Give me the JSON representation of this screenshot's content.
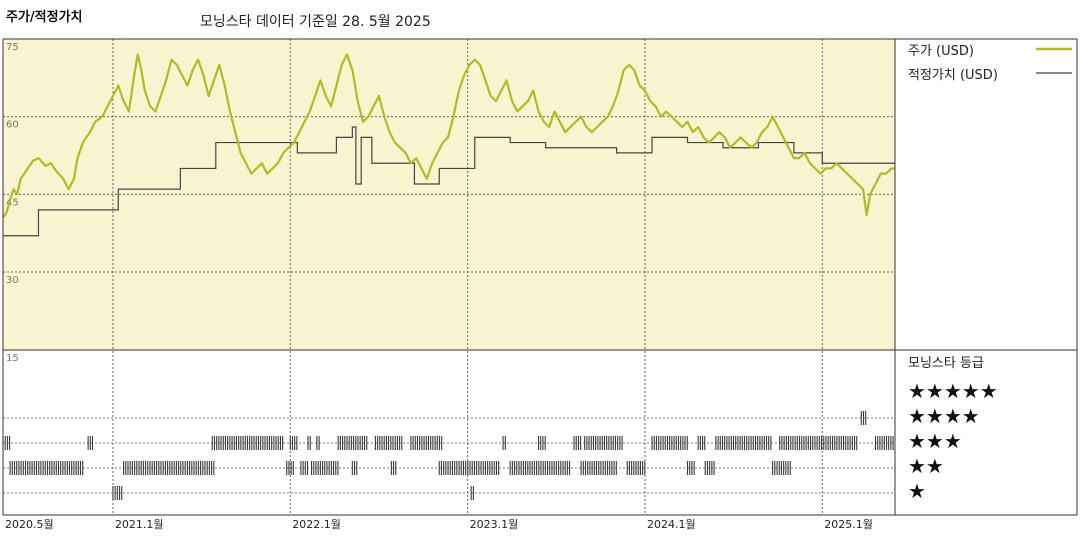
{
  "header": {
    "title": "주가/적정가치",
    "subtitle": "모닝스타 데이터 기준일 28. 5월 2025"
  },
  "legend": {
    "price_label": "주가 (USD)",
    "fair_label": "적정가치 (USD)",
    "rating_title": "모닝스타 등급",
    "stars": [
      "★★★★★",
      "★★★★",
      "★★★",
      "★★",
      "★"
    ]
  },
  "colors": {
    "price": "#b5b829",
    "fair": "#444444",
    "plot_bg": "#f8f4cf",
    "rating_bar": "#3a3a3a"
  },
  "chart_data": {
    "type": "line",
    "title": "주가/적정가치",
    "x_unit": "year",
    "xlim": [
      2020.38,
      2025.41
    ],
    "ylim": [
      15,
      75
    ],
    "yticks": [
      {
        "label": "75",
        "value": 75
      },
      {
        "label": "60",
        "value": 60
      },
      {
        "label": "45",
        "value": 45
      },
      {
        "label": "30",
        "value": 30
      },
      {
        "label": "15",
        "value": 15
      }
    ],
    "xticks": [
      {
        "label": "2020.5월",
        "value": 2020.38
      },
      {
        "label": "2021.1월",
        "value": 2021.0
      },
      {
        "label": "2022.1월",
        "value": 2022.0
      },
      {
        "label": "2023.1월",
        "value": 2023.0
      },
      {
        "label": "2024.1월",
        "value": 2024.0
      },
      {
        "label": "2025.1월",
        "value": 2025.0
      }
    ],
    "series": [
      {
        "name": "주가 (USD)",
        "points": [
          [
            2020.38,
            40.5
          ],
          [
            2020.4,
            41.5
          ],
          [
            2020.42,
            44
          ],
          [
            2020.44,
            46
          ],
          [
            2020.46,
            45
          ],
          [
            2020.48,
            48
          ],
          [
            2020.5,
            49
          ],
          [
            2020.52,
            50
          ],
          [
            2020.55,
            51.5
          ],
          [
            2020.58,
            52
          ],
          [
            2020.62,
            50.5
          ],
          [
            2020.65,
            51
          ],
          [
            2020.68,
            49.5
          ],
          [
            2020.72,
            48
          ],
          [
            2020.75,
            46
          ],
          [
            2020.78,
            48
          ],
          [
            2020.8,
            52
          ],
          [
            2020.83,
            55
          ],
          [
            2020.87,
            57
          ],
          [
            2020.9,
            59
          ],
          [
            2020.94,
            60
          ],
          [
            2020.97,
            62
          ],
          [
            2021.0,
            64
          ],
          [
            2021.03,
            66
          ],
          [
            2021.06,
            63
          ],
          [
            2021.09,
            61
          ],
          [
            2021.12,
            68
          ],
          [
            2021.14,
            72
          ],
          [
            2021.16,
            69
          ],
          [
            2021.18,
            65
          ],
          [
            2021.21,
            62
          ],
          [
            2021.24,
            61
          ],
          [
            2021.27,
            64
          ],
          [
            2021.3,
            67
          ],
          [
            2021.33,
            71
          ],
          [
            2021.36,
            70
          ],
          [
            2021.39,
            68
          ],
          [
            2021.42,
            66
          ],
          [
            2021.45,
            69
          ],
          [
            2021.48,
            71
          ],
          [
            2021.51,
            68
          ],
          [
            2021.54,
            64
          ],
          [
            2021.57,
            67
          ],
          [
            2021.6,
            70
          ],
          [
            2021.63,
            66
          ],
          [
            2021.66,
            61
          ],
          [
            2021.69,
            57
          ],
          [
            2021.72,
            53
          ],
          [
            2021.75,
            51
          ],
          [
            2021.78,
            49
          ],
          [
            2021.81,
            50
          ],
          [
            2021.84,
            51
          ],
          [
            2021.87,
            49
          ],
          [
            2021.9,
            50
          ],
          [
            2021.93,
            51
          ],
          [
            2021.96,
            53
          ],
          [
            2021.99,
            54
          ],
          [
            2022.02,
            55
          ],
          [
            2022.05,
            57
          ],
          [
            2022.08,
            59
          ],
          [
            2022.11,
            61
          ],
          [
            2022.14,
            64
          ],
          [
            2022.17,
            67
          ],
          [
            2022.2,
            64
          ],
          [
            2022.23,
            62
          ],
          [
            2022.26,
            66
          ],
          [
            2022.29,
            70
          ],
          [
            2022.32,
            72
          ],
          [
            2022.35,
            69
          ],
          [
            2022.38,
            63
          ],
          [
            2022.41,
            59
          ],
          [
            2022.44,
            60
          ],
          [
            2022.47,
            62
          ],
          [
            2022.5,
            64
          ],
          [
            2022.53,
            60
          ],
          [
            2022.56,
            57
          ],
          [
            2022.59,
            55
          ],
          [
            2022.62,
            54
          ],
          [
            2022.65,
            53
          ],
          [
            2022.68,
            51
          ],
          [
            2022.71,
            52
          ],
          [
            2022.74,
            50
          ],
          [
            2022.77,
            48
          ],
          [
            2022.8,
            51
          ],
          [
            2022.83,
            53
          ],
          [
            2022.86,
            55
          ],
          [
            2022.89,
            56
          ],
          [
            2022.92,
            60
          ],
          [
            2022.95,
            65
          ],
          [
            2022.98,
            68
          ],
          [
            2023.01,
            70
          ],
          [
            2023.04,
            71
          ],
          [
            2023.07,
            70
          ],
          [
            2023.1,
            67
          ],
          [
            2023.13,
            64
          ],
          [
            2023.16,
            63
          ],
          [
            2023.19,
            65
          ],
          [
            2023.22,
            67
          ],
          [
            2023.25,
            63
          ],
          [
            2023.28,
            61
          ],
          [
            2023.31,
            62
          ],
          [
            2023.34,
            63
          ],
          [
            2023.37,
            65
          ],
          [
            2023.4,
            61
          ],
          [
            2023.43,
            59
          ],
          [
            2023.46,
            58
          ],
          [
            2023.49,
            61
          ],
          [
            2023.52,
            59
          ],
          [
            2023.55,
            57
          ],
          [
            2023.58,
            58
          ],
          [
            2023.61,
            59
          ],
          [
            2023.64,
            60
          ],
          [
            2023.67,
            58
          ],
          [
            2023.7,
            57
          ],
          [
            2023.73,
            58
          ],
          [
            2023.76,
            59
          ],
          [
            2023.79,
            60
          ],
          [
            2023.82,
            62
          ],
          [
            2023.85,
            65
          ],
          [
            2023.88,
            69
          ],
          [
            2023.91,
            70
          ],
          [
            2023.94,
            69
          ],
          [
            2023.97,
            66
          ],
          [
            2024.0,
            65
          ],
          [
            2024.03,
            63
          ],
          [
            2024.06,
            62
          ],
          [
            2024.09,
            60
          ],
          [
            2024.12,
            61
          ],
          [
            2024.15,
            60
          ],
          [
            2024.18,
            59
          ],
          [
            2024.21,
            58
          ],
          [
            2024.24,
            59
          ],
          [
            2024.27,
            57
          ],
          [
            2024.3,
            58
          ],
          [
            2024.33,
            56
          ],
          [
            2024.36,
            55
          ],
          [
            2024.39,
            56
          ],
          [
            2024.42,
            57
          ],
          [
            2024.45,
            56
          ],
          [
            2024.48,
            54
          ],
          [
            2024.51,
            55
          ],
          [
            2024.54,
            56
          ],
          [
            2024.57,
            55
          ],
          [
            2024.6,
            54
          ],
          [
            2024.63,
            55
          ],
          [
            2024.66,
            57
          ],
          [
            2024.69,
            58
          ],
          [
            2024.72,
            60
          ],
          [
            2024.75,
            58
          ],
          [
            2024.78,
            56
          ],
          [
            2024.81,
            54
          ],
          [
            2024.84,
            52
          ],
          [
            2024.87,
            52
          ],
          [
            2024.9,
            53
          ],
          [
            2024.93,
            51
          ],
          [
            2024.96,
            50
          ],
          [
            2024.99,
            49
          ],
          [
            2025.02,
            50
          ],
          [
            2025.05,
            50
          ],
          [
            2025.08,
            51
          ],
          [
            2025.11,
            50
          ],
          [
            2025.14,
            49
          ],
          [
            2025.17,
            48
          ],
          [
            2025.2,
            47
          ],
          [
            2025.23,
            46
          ],
          [
            2025.25,
            41
          ],
          [
            2025.27,
            45
          ],
          [
            2025.3,
            47
          ],
          [
            2025.33,
            49
          ],
          [
            2025.36,
            49
          ],
          [
            2025.39,
            50
          ],
          [
            2025.41,
            50
          ]
        ]
      },
      {
        "name": "적정가치 (USD)",
        "steps": [
          [
            2020.38,
            37
          ],
          [
            2020.58,
            42
          ],
          [
            2021.03,
            46
          ],
          [
            2021.38,
            50
          ],
          [
            2021.58,
            55
          ],
          [
            2022.04,
            53
          ],
          [
            2022.26,
            56
          ],
          [
            2022.35,
            58
          ],
          [
            2022.37,
            47
          ],
          [
            2022.4,
            56
          ],
          [
            2022.46,
            51
          ],
          [
            2022.7,
            47
          ],
          [
            2022.84,
            50
          ],
          [
            2023.04,
            56
          ],
          [
            2023.24,
            55
          ],
          [
            2023.44,
            54
          ],
          [
            2023.64,
            54
          ],
          [
            2023.84,
            53
          ],
          [
            2024.04,
            56
          ],
          [
            2024.24,
            55
          ],
          [
            2024.44,
            54
          ],
          [
            2024.64,
            55
          ],
          [
            2024.84,
            53
          ],
          [
            2025.0,
            51
          ],
          [
            2025.41,
            51
          ]
        ]
      }
    ],
    "rating_rows": [
      {
        "label": "★★★★★",
        "segments": []
      },
      {
        "label": "★★★★",
        "segments": [
          [
            2025.22,
            2025.25
          ]
        ]
      },
      {
        "label": "★★★",
        "segments": [
          [
            2020.38,
            2020.42
          ],
          [
            2020.86,
            2020.89
          ],
          [
            2021.56,
            2021.96
          ],
          [
            2022.0,
            2022.04
          ],
          [
            2022.1,
            2022.12
          ],
          [
            2022.15,
            2022.17
          ],
          [
            2022.27,
            2022.44
          ],
          [
            2022.48,
            2022.64
          ],
          [
            2022.68,
            2022.86
          ],
          [
            2023.2,
            2023.22
          ],
          [
            2023.4,
            2023.44
          ],
          [
            2023.6,
            2023.64
          ],
          [
            2023.66,
            2023.88
          ],
          [
            2024.04,
            2024.24
          ],
          [
            2024.3,
            2024.34
          ],
          [
            2024.4,
            2024.72
          ],
          [
            2024.76,
            2025.2
          ],
          [
            2025.3,
            2025.41
          ]
        ]
      },
      {
        "label": "★★",
        "segments": [
          [
            2020.42,
            2020.84
          ],
          [
            2021.06,
            2021.58
          ],
          [
            2021.98,
            2022.02
          ],
          [
            2022.06,
            2022.1
          ],
          [
            2022.12,
            2022.27
          ],
          [
            2022.35,
            2022.38
          ],
          [
            2022.57,
            2022.6
          ],
          [
            2022.84,
            2023.18
          ],
          [
            2023.24,
            2023.58
          ],
          [
            2023.64,
            2023.84
          ],
          [
            2023.9,
            2024.0
          ],
          [
            2024.24,
            2024.28
          ],
          [
            2024.34,
            2024.4
          ],
          [
            2024.72,
            2024.82
          ]
        ]
      },
      {
        "label": "★",
        "segments": [
          [
            2021.0,
            2021.05
          ],
          [
            2023.02,
            2023.04
          ]
        ]
      }
    ]
  }
}
